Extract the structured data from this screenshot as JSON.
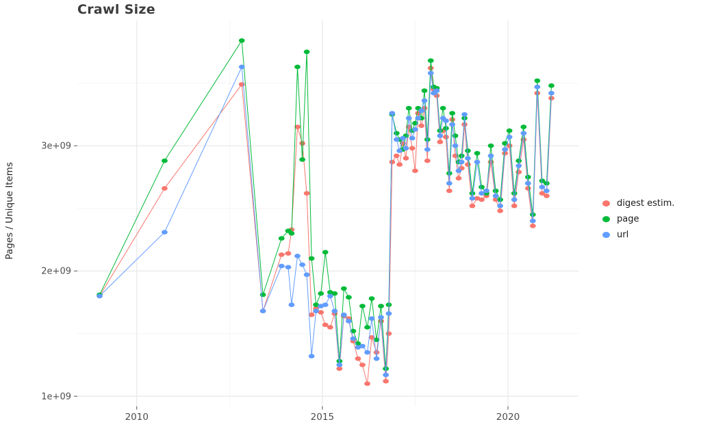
{
  "chart_data": {
    "type": "line",
    "title": "Crawl Size",
    "ylabel": "Pages / Unique Items",
    "xlabel": "",
    "y_unit": "1e9",
    "xlim": [
      2008.4,
      2021.9
    ],
    "ylim": [
      0.92,
      4.0
    ],
    "grid": "on",
    "grid_major_color": "#e8e8e8",
    "grid_minor_color": "#f4f4f4",
    "axis_text_color": "#4d4d4d",
    "tick_mark_color": "#555555",
    "legend_position": "right",
    "x_ticks": [
      {
        "value": 2010,
        "label": "2010"
      },
      {
        "value": 2015,
        "label": "2015"
      },
      {
        "value": 2020,
        "label": "2020"
      }
    ],
    "x_minor": [
      2012.5,
      2017.5
    ],
    "y_ticks": [
      {
        "value": 1,
        "label": "1e+09"
      },
      {
        "value": 2,
        "label": "2e+09"
      },
      {
        "value": 3,
        "label": "3e+09"
      }
    ],
    "y_minor": [
      1.5,
      2.5,
      3.5
    ],
    "x": [
      2009.0,
      2010.75,
      2012.83,
      2013.4,
      2013.9,
      2014.08,
      2014.17,
      2014.33,
      2014.46,
      2014.58,
      2014.71,
      2014.83,
      2014.96,
      2015.08,
      2015.21,
      2015.33,
      2015.46,
      2015.58,
      2015.71,
      2015.83,
      2015.96,
      2016.08,
      2016.21,
      2016.33,
      2016.46,
      2016.58,
      2016.71,
      2016.79,
      2016.88,
      2017.0,
      2017.08,
      2017.17,
      2017.25,
      2017.33,
      2017.42,
      2017.5,
      2017.58,
      2017.67,
      2017.75,
      2017.83,
      2017.92,
      2018.0,
      2018.08,
      2018.17,
      2018.25,
      2018.33,
      2018.42,
      2018.5,
      2018.58,
      2018.67,
      2018.75,
      2018.83,
      2018.92,
      2019.04,
      2019.17,
      2019.29,
      2019.42,
      2019.54,
      2019.67,
      2019.79,
      2019.92,
      2020.04,
      2020.17,
      2020.29,
      2020.42,
      2020.54,
      2020.67,
      2020.79,
      2020.92,
      2021.04,
      2021.17
    ],
    "series": [
      {
        "id": "digest",
        "name": "digest estim.",
        "color": "#F8766D",
        "values": [
          1.8,
          2.66,
          3.49,
          1.68,
          2.13,
          2.14,
          2.33,
          3.15,
          3.02,
          2.62,
          1.65,
          1.7,
          1.67,
          1.57,
          1.55,
          1.66,
          1.22,
          1.64,
          1.62,
          1.44,
          1.3,
          1.25,
          1.1,
          1.47,
          1.35,
          1.6,
          1.12,
          1.5,
          2.87,
          2.92,
          2.85,
          3.02,
          2.9,
          3.15,
          2.98,
          2.8,
          3.26,
          3.16,
          3.3,
          2.88,
          3.62,
          3.45,
          3.4,
          3.03,
          3.12,
          3.07,
          2.64,
          3.21,
          2.92,
          2.74,
          2.82,
          3.17,
          2.85,
          2.52,
          2.58,
          2.57,
          2.6,
          2.87,
          2.57,
          2.48,
          2.94,
          3.0,
          2.52,
          2.79,
          3.05,
          2.66,
          2.36,
          3.42,
          2.62,
          2.6,
          3.38
        ]
      },
      {
        "id": "page",
        "name": "page",
        "color": "#00BA38",
        "values": [
          1.81,
          2.88,
          3.84,
          1.81,
          2.26,
          2.32,
          2.3,
          3.63,
          2.89,
          3.75,
          2.1,
          1.73,
          1.82,
          2.15,
          1.83,
          1.82,
          1.28,
          1.86,
          1.79,
          1.52,
          1.42,
          1.72,
          1.55,
          1.78,
          1.45,
          1.72,
          1.22,
          1.73,
          3.25,
          3.1,
          3.05,
          2.97,
          3.08,
          3.3,
          3.12,
          3.18,
          3.3,
          3.22,
          3.44,
          3.05,
          3.68,
          3.47,
          3.46,
          3.12,
          3.3,
          3.14,
          2.78,
          3.26,
          3.08,
          2.87,
          2.92,
          3.22,
          2.96,
          2.62,
          2.94,
          2.67,
          2.62,
          3.0,
          2.64,
          2.57,
          3.02,
          3.12,
          2.62,
          2.88,
          3.15,
          2.75,
          2.45,
          3.52,
          2.72,
          2.7,
          3.48
        ]
      },
      {
        "id": "url",
        "name": "url",
        "color": "#619CFF",
        "values": [
          1.8,
          2.31,
          3.63,
          1.68,
          2.04,
          2.03,
          1.73,
          2.12,
          2.05,
          1.97,
          1.32,
          1.68,
          1.72,
          1.73,
          1.8,
          1.68,
          1.25,
          1.65,
          1.6,
          1.46,
          1.39,
          1.4,
          1.35,
          1.62,
          1.3,
          1.63,
          1.17,
          1.66,
          3.26,
          3.05,
          2.96,
          3.06,
          2.98,
          3.22,
          3.06,
          3.13,
          3.22,
          3.28,
          3.36,
          2.97,
          3.58,
          3.42,
          3.44,
          3.08,
          3.22,
          3.2,
          2.7,
          3.17,
          3.0,
          2.8,
          2.87,
          3.25,
          2.9,
          2.58,
          2.87,
          2.62,
          2.64,
          2.92,
          2.6,
          2.52,
          2.97,
          3.07,
          2.57,
          2.84,
          3.1,
          2.7,
          2.4,
          3.47,
          2.67,
          2.64,
          3.42
        ]
      }
    ]
  }
}
